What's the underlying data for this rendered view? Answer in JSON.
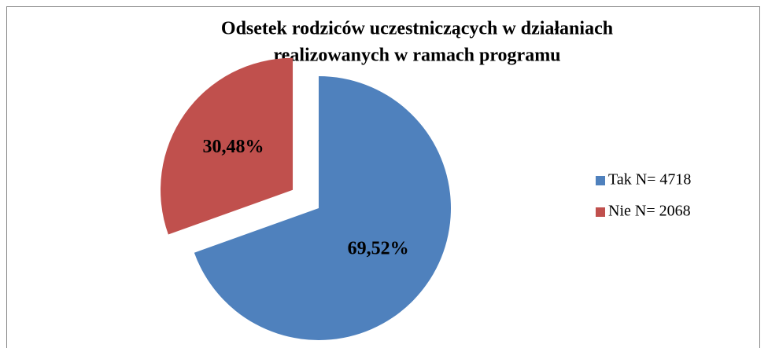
{
  "chart_data": {
    "type": "pie",
    "title": [
      "Odsetek rodziców uczestniczących w działaniach",
      "realizowanych w ramach programu"
    ],
    "categories": [
      "Tak N= 4718",
      "Nie N= 2068"
    ],
    "values": [
      69.52,
      30.48
    ],
    "value_labels": [
      "69,52%",
      "30,48%"
    ],
    "colors": [
      "#4f81bd",
      "#c0504d"
    ],
    "explode": [
      0,
      0.24
    ],
    "legend": "right"
  }
}
